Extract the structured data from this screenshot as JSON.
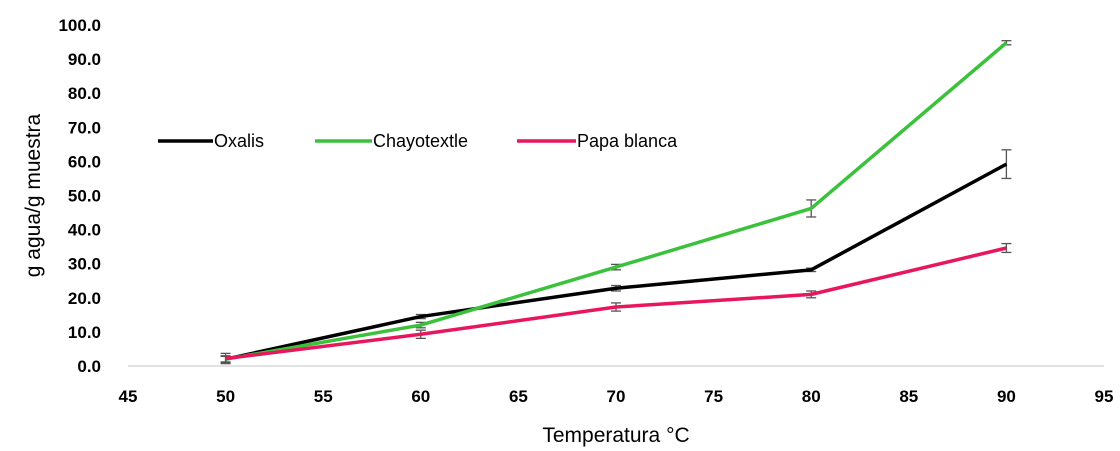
{
  "chart_data": {
    "type": "line",
    "title": "",
    "xlabel": "Temperatura °C",
    "ylabel": "g agua/g muestra",
    "xlim": [
      45,
      95
    ],
    "ylim": [
      0,
      100
    ],
    "x_ticks": [
      "45",
      "50",
      "55",
      "60",
      "65",
      "70",
      "75",
      "80",
      "85",
      "90",
      "95"
    ],
    "y_ticks": [
      "0.0",
      "10.0",
      "20.0",
      "30.0",
      "40.0",
      "50.0",
      "60.0",
      "70.0",
      "80.0",
      "90.0",
      "100.0"
    ],
    "grid": false,
    "legend_position": "top-left",
    "x": [
      50,
      60,
      70,
      80,
      90
    ],
    "series": [
      {
        "name": "Oxalis",
        "color": "#000000",
        "values": [
          2.0,
          14.5,
          22.8,
          28.2,
          59.2
        ],
        "errors": [
          1.0,
          0.6,
          0.8,
          0.5,
          4.2
        ]
      },
      {
        "name": "Chayotextle",
        "color": "#3cc13c",
        "values": [
          2.0,
          12.0,
          29.0,
          46.2,
          94.8
        ],
        "errors": [
          0.8,
          0.8,
          0.8,
          2.5,
          0.6
        ]
      },
      {
        "name": "Papa blanca",
        "color": "#e8175d",
        "values": [
          2.2,
          9.3,
          17.3,
          21.0,
          34.6
        ],
        "errors": [
          1.5,
          1.2,
          1.2,
          1.0,
          1.3
        ]
      }
    ]
  }
}
